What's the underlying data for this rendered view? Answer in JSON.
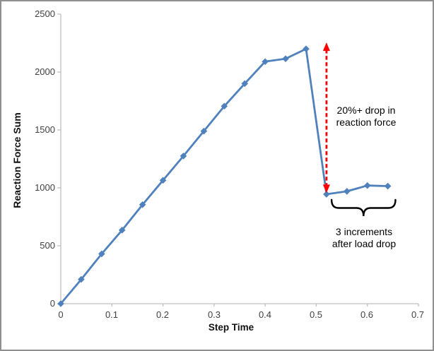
{
  "chart_data": {
    "type": "line",
    "title": "",
    "xlabel": "Step Time",
    "ylabel": "Reaction Force Sum",
    "x": [
      0,
      0.04,
      0.08,
      0.12,
      0.16,
      0.2,
      0.24,
      0.28,
      0.32,
      0.36,
      0.4,
      0.44,
      0.48,
      0.52,
      0.56,
      0.6,
      0.64
    ],
    "series": [
      {
        "name": "Reaction Force Sum",
        "color": "#4F81BD",
        "marker": "diamond",
        "values": [
          0,
          210,
          430,
          635,
          855,
          1065,
          1275,
          1490,
          1705,
          1900,
          2090,
          2115,
          2200,
          945,
          970,
          1020,
          1015
        ]
      }
    ],
    "xlim": [
      0,
      0.7
    ],
    "ylim": [
      0,
      2500
    ],
    "x_ticks": [
      "0",
      "0.1",
      "0.2",
      "0.3",
      "0.4",
      "0.5",
      "0.6",
      "0.7"
    ],
    "y_ticks": [
      "0",
      "500",
      "1000",
      "1500",
      "2000",
      "2500"
    ],
    "grid": false,
    "legend": "none",
    "axis_color": "#BFBFBF",
    "tick_label_color": "#404040"
  },
  "annotations": {
    "drop_note": {
      "line1": "20%+ drop in",
      "line2": "reaction force",
      "arrow_color": "#FF0000",
      "text_color": "#000000",
      "arrow_x_value": 0.52,
      "arrow_top_value": 2255,
      "arrow_bottom_value": 955
    },
    "increments_note": {
      "line1": "3 increments",
      "line2": "after load drop",
      "brace_color": "#000000",
      "text_color": "#000000",
      "brace_span_values": [
        0.53,
        0.655
      ]
    }
  },
  "frame": {
    "background": "#FFFFFF",
    "border_color": "#8F8F8F"
  }
}
